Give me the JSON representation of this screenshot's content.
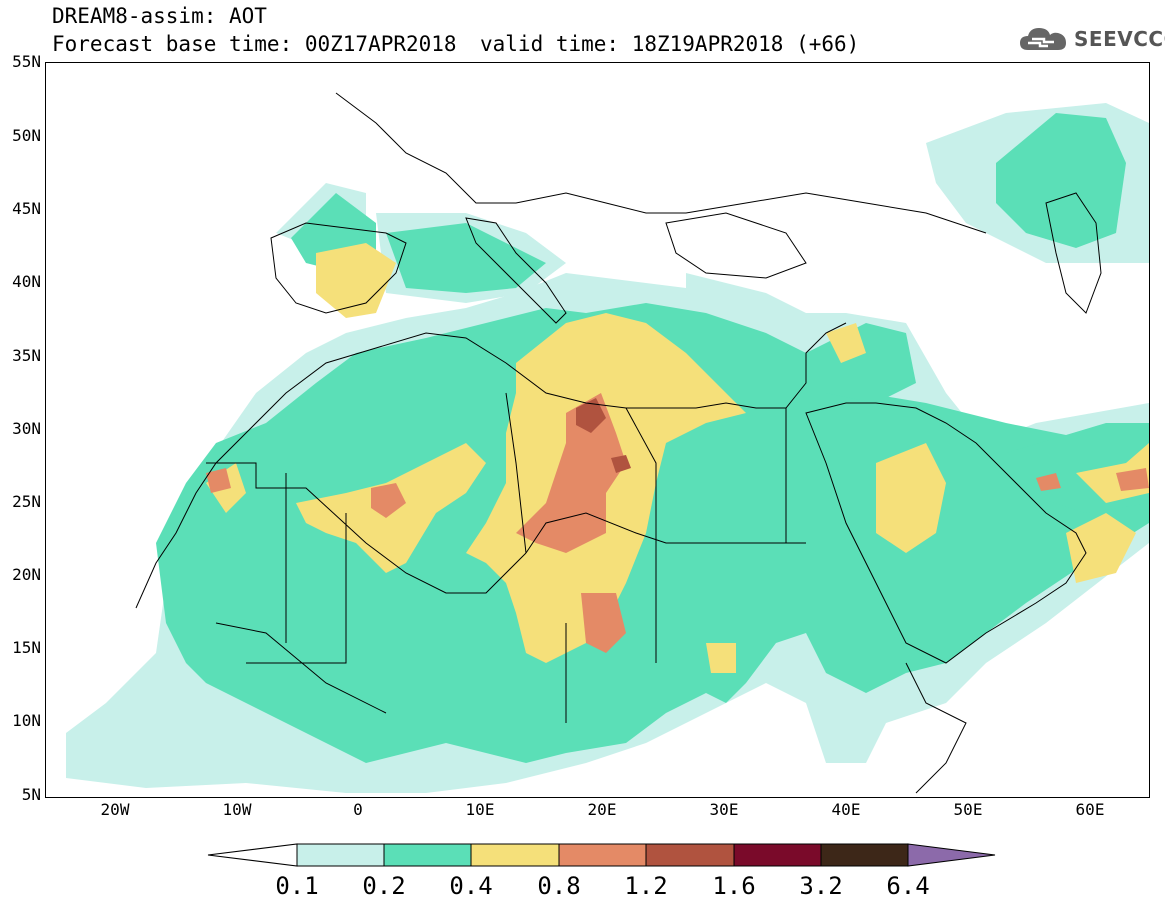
{
  "header": {
    "title_line1": "DREAM8-assim: AOT",
    "title_line2": "Forecast base time: 00Z17APR2018",
    "valid_time": "valid time: 18Z19APR2018 (+66)",
    "logo_text": "SEEVCCC"
  },
  "map": {
    "lat_labels": [
      "55N",
      "50N",
      "45N",
      "40N",
      "35N",
      "30N",
      "25N",
      "20N",
      "15N",
      "10N",
      "5N"
    ],
    "lon_labels": [
      "20W",
      "10W",
      "0",
      "10E",
      "20E",
      "30E",
      "40E",
      "50E",
      "60E"
    ],
    "extent": {
      "lon_min": -25,
      "lon_max": 65,
      "lat_min": 5,
      "lat_max": 55
    }
  },
  "colorbar": {
    "levels": [
      "0.1",
      "0.2",
      "0.4",
      "0.8",
      "1.2",
      "1.6",
      "3.2",
      "6.4"
    ],
    "colors": [
      "#ffffff",
      "#c8f0ea",
      "#5bdfb7",
      "#f5e07a",
      "#e48a66",
      "#b0533f",
      "#7a0a2a",
      "#3d2718",
      "#8c6aaa"
    ]
  },
  "colors": {
    "c01": "#c8f0ea",
    "c02": "#5bdfb7",
    "c04": "#f5e07a",
    "c08": "#e48a66",
    "c12": "#b0533f"
  }
}
